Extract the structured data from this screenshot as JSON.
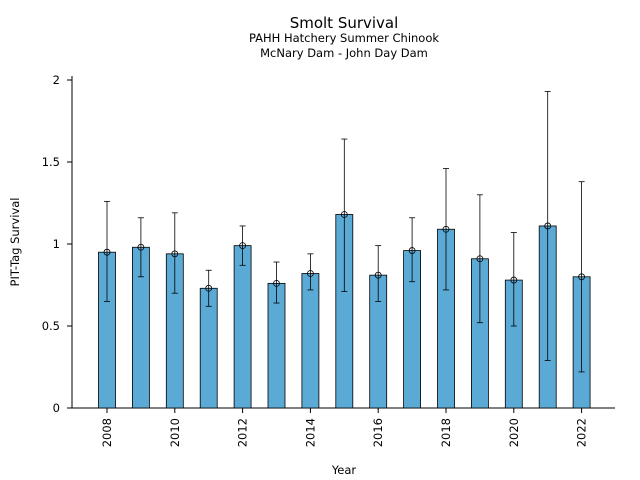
{
  "chart_data": {
    "type": "bar",
    "title": "Smolt Survival",
    "subtitle_lines": [
      "PAHH Hatchery Summer Chinook",
      "McNary Dam - John Day Dam"
    ],
    "xlabel": "Year",
    "ylabel": "PIT-Tag Survival",
    "ylim": [
      0,
      2
    ],
    "yticks": [
      0,
      0.5,
      1,
      1.5,
      2
    ],
    "ytick_labels": [
      "0",
      "0.5",
      "1",
      "1.5",
      "2"
    ],
    "xtick_labels": [
      "2008",
      "2010",
      "2012",
      "2014",
      "2016",
      "2018",
      "2020",
      "2022"
    ],
    "grid": false,
    "bar_color": "#5BAAD6",
    "edge_color": "#000000",
    "categories": [
      "2008",
      "2009",
      "2010",
      "2011",
      "2012",
      "2013",
      "2014",
      "2015",
      "2016",
      "2017",
      "2018",
      "2019",
      "2020",
      "2021",
      "2022"
    ],
    "values": [
      0.95,
      0.98,
      0.94,
      0.73,
      0.99,
      0.76,
      0.82,
      1.18,
      0.81,
      0.96,
      1.09,
      0.91,
      0.78,
      1.11,
      0.8
    ],
    "error_lower": [
      0.65,
      0.8,
      0.7,
      0.62,
      0.87,
      0.64,
      0.72,
      0.71,
      0.65,
      0.77,
      0.72,
      0.52,
      0.5,
      0.29,
      0.22
    ],
    "error_upper": [
      1.26,
      1.16,
      1.19,
      0.84,
      1.11,
      0.89,
      0.94,
      1.64,
      0.99,
      1.16,
      1.46,
      1.3,
      1.07,
      1.93,
      1.38
    ]
  }
}
